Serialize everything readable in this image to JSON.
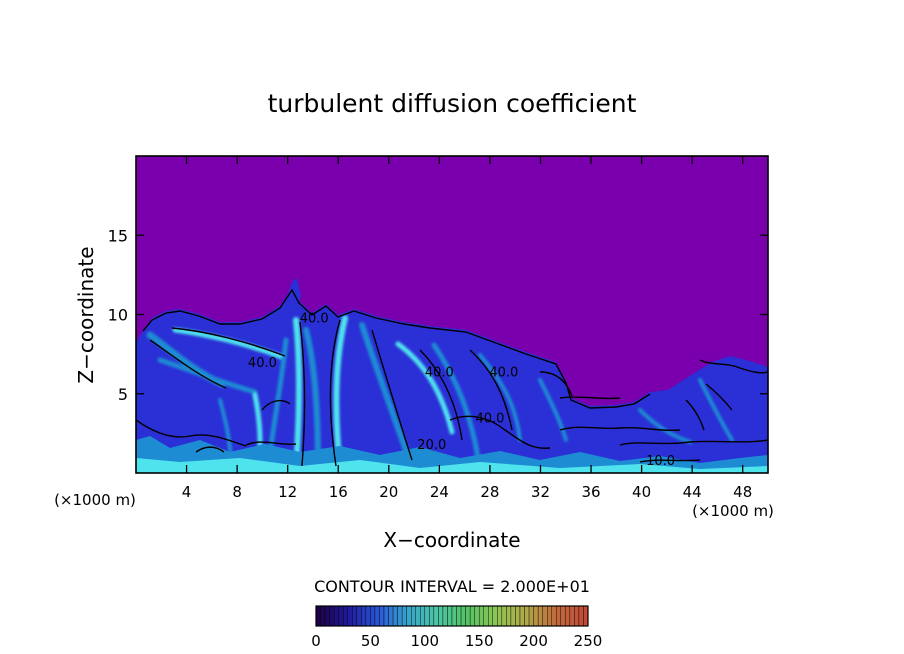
{
  "chart_data": {
    "type": "heatmap",
    "title": "turbulent diffusion coefficient",
    "xlabel": "X−coordinate",
    "ylabel": "Z−coordinate",
    "x_unit": "(×1000 m)",
    "y_unit": "(×1000 m)",
    "xlim": [
      0,
      50
    ],
    "ylim": [
      0,
      20
    ],
    "x_ticks": [
      4,
      8,
      12,
      16,
      20,
      24,
      28,
      32,
      36,
      40,
      44,
      48
    ],
    "y_ticks": [
      5,
      10,
      15
    ],
    "contour_interval_text": "CONTOUR INTERVAL = 2.000E+01",
    "contour_labels": [
      {
        "x": 10,
        "z": 6.7,
        "text": "40.0"
      },
      {
        "x": 14.1,
        "z": 9.5,
        "text": "40.0"
      },
      {
        "x": 24.0,
        "z": 6.1,
        "text": "40.0"
      },
      {
        "x": 29.1,
        "z": 6.1,
        "text": "40.0"
      },
      {
        "x": 23.4,
        "z": 1.5,
        "text": "20.0"
      },
      {
        "x": 28.0,
        "z": 3.2,
        "text": "40.0"
      },
      {
        "x": 41.5,
        "z": 0.5,
        "text": "10.0"
      }
    ],
    "colorbar": {
      "min": 0,
      "max": 250,
      "ticks": [
        0,
        50,
        100,
        150,
        200,
        250
      ],
      "colors": [
        "#20004a",
        "#1e1a9a",
        "#2a55d8",
        "#36a4cc",
        "#4cc6a4",
        "#54c266",
        "#8ec652",
        "#b2a84a",
        "#c06a3c",
        "#c44a38"
      ]
    },
    "colors": {
      "background": "#7b00ad",
      "turbulent_layer": "#2b2fd6",
      "low_values": "#20179b",
      "mid_values": "#1e8cd3",
      "high_values": "#4fe3ee"
    }
  }
}
